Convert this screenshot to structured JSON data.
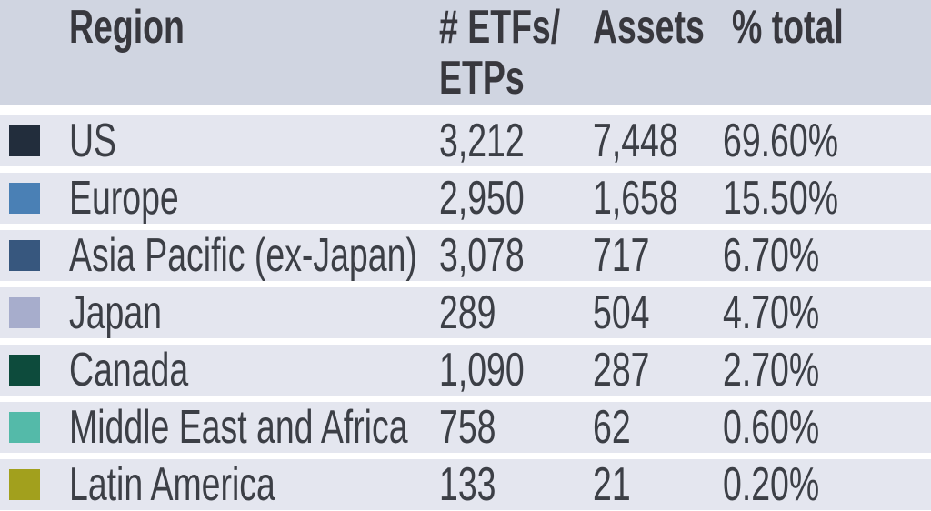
{
  "table": {
    "headers": {
      "region": "Region",
      "etfs_line1": "# ETFs/",
      "etfs_line2": "ETPs",
      "assets": "Assets",
      "pct_total": "% total"
    },
    "rows": [
      {
        "region": "US",
        "etfs": "3,212",
        "assets": "7,448",
        "pct": "69.60%",
        "color": "#222d3c"
      },
      {
        "region": "Europe",
        "etfs": "2,950",
        "assets": "1,658",
        "pct": "15.50%",
        "color": "#4a80b5"
      },
      {
        "region": "Asia Pacific (ex-Japan)",
        "etfs": "3,078",
        "assets": "717",
        "pct": "6.70%",
        "color": "#37577e"
      },
      {
        "region": "Japan",
        "etfs": "289",
        "assets": "504",
        "pct": "4.70%",
        "color": "#a7adcc"
      },
      {
        "region": "Canada",
        "etfs": "1,090",
        "assets": "287",
        "pct": "2.70%",
        "color": "#0d4b3c"
      },
      {
        "region": "Middle East and Africa",
        "etfs": "758",
        "assets": "62",
        "pct": "0.60%",
        "color": "#54baa9"
      },
      {
        "region": "Latin America",
        "etfs": "133",
        "assets": "21",
        "pct": "0.20%",
        "color": "#a2a01d"
      }
    ]
  },
  "chart_data": {
    "type": "table",
    "title": "",
    "columns": [
      "Region",
      "# ETFs/ETPs",
      "Assets",
      "% total"
    ],
    "rows": [
      [
        "US",
        3212,
        7448,
        "69.60%"
      ],
      [
        "Europe",
        2950,
        1658,
        "15.50%"
      ],
      [
        "Asia Pacific (ex-Japan)",
        3078,
        717,
        "6.70%"
      ],
      [
        "Japan",
        289,
        504,
        "4.70%"
      ],
      [
        "Canada",
        1090,
        287,
        "2.70%"
      ],
      [
        "Middle East and Africa",
        758,
        62,
        "0.60%"
      ],
      [
        "Latin America",
        133,
        21,
        "0.20%"
      ]
    ],
    "legend_colors": [
      "#222d3c",
      "#4a80b5",
      "#37577e",
      "#a7adcc",
      "#0d4b3c",
      "#54baa9",
      "#a2a01d"
    ],
    "layout": "legend table, colored swatches left of region names, last row clipped at bottom edge"
  }
}
